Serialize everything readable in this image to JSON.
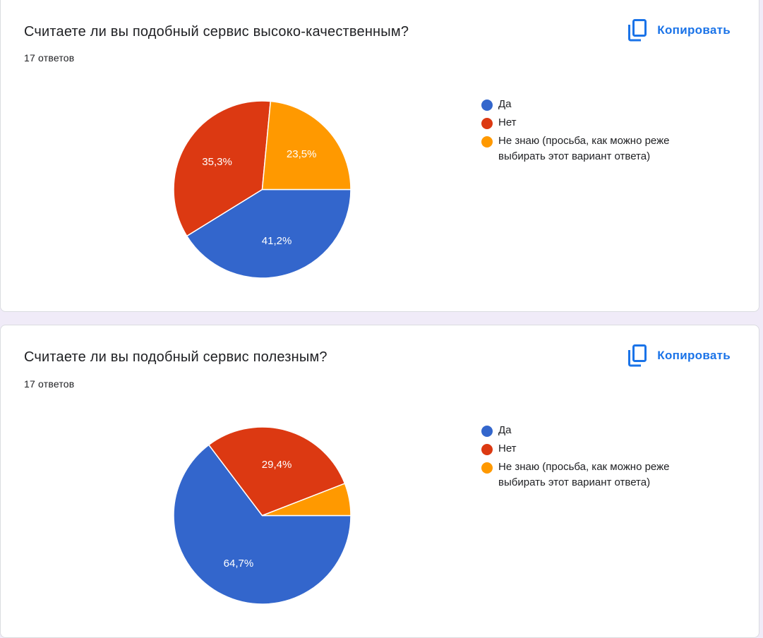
{
  "colors": {
    "blue": "#3366cc",
    "red": "#dc3912",
    "orange": "#ff9900",
    "accent": "#1a73e8"
  },
  "copy_icon": "copy-icon",
  "questions": [
    {
      "title": "Считаете ли вы подобный сервис высоко-качественным?",
      "count_label": "17 ответов",
      "copy_label": "Копировать",
      "legend": [
        {
          "label": "Да",
          "color": "#3366cc"
        },
        {
          "label": "Нет",
          "color": "#dc3912"
        },
        {
          "label": "Не знаю (просьба, как можно реже выбирать этот вариант ответа)",
          "color": "#ff9900"
        }
      ]
    },
    {
      "title": "Считаете ли вы подобный сервис полезным?",
      "count_label": "17 ответов",
      "copy_label": "Копировать",
      "legend": [
        {
          "label": "Да",
          "color": "#3366cc"
        },
        {
          "label": "Нет",
          "color": "#dc3912"
        },
        {
          "label": "Не знаю (просьба, как можно реже выбирать этот вариант ответа)",
          "color": "#ff9900"
        }
      ]
    }
  ],
  "chart_data": [
    {
      "type": "pie",
      "title": "Считаете ли вы подобный сервис высоко-качественным?",
      "categories": [
        "Да",
        "Нет",
        "Не знаю (просьба, как можно реже выбирать этот вариант ответа)"
      ],
      "values": [
        41.2,
        35.3,
        23.5
      ],
      "value_labels": [
        "41,2%",
        "35,3%",
        "23,5%"
      ],
      "colors": [
        "#3366cc",
        "#dc3912",
        "#ff9900"
      ],
      "legend": "right"
    },
    {
      "type": "pie",
      "title": "Считаете ли вы подобный сервис полезным?",
      "categories": [
        "Да",
        "Нет",
        "Не знаю (просьба, как можно реже выбирать этот вариант ответа)"
      ],
      "values": [
        64.7,
        29.4,
        5.9
      ],
      "value_labels": [
        "64,7%",
        "29,4%",
        ""
      ],
      "colors": [
        "#3366cc",
        "#dc3912",
        "#ff9900"
      ],
      "legend": "right"
    }
  ]
}
